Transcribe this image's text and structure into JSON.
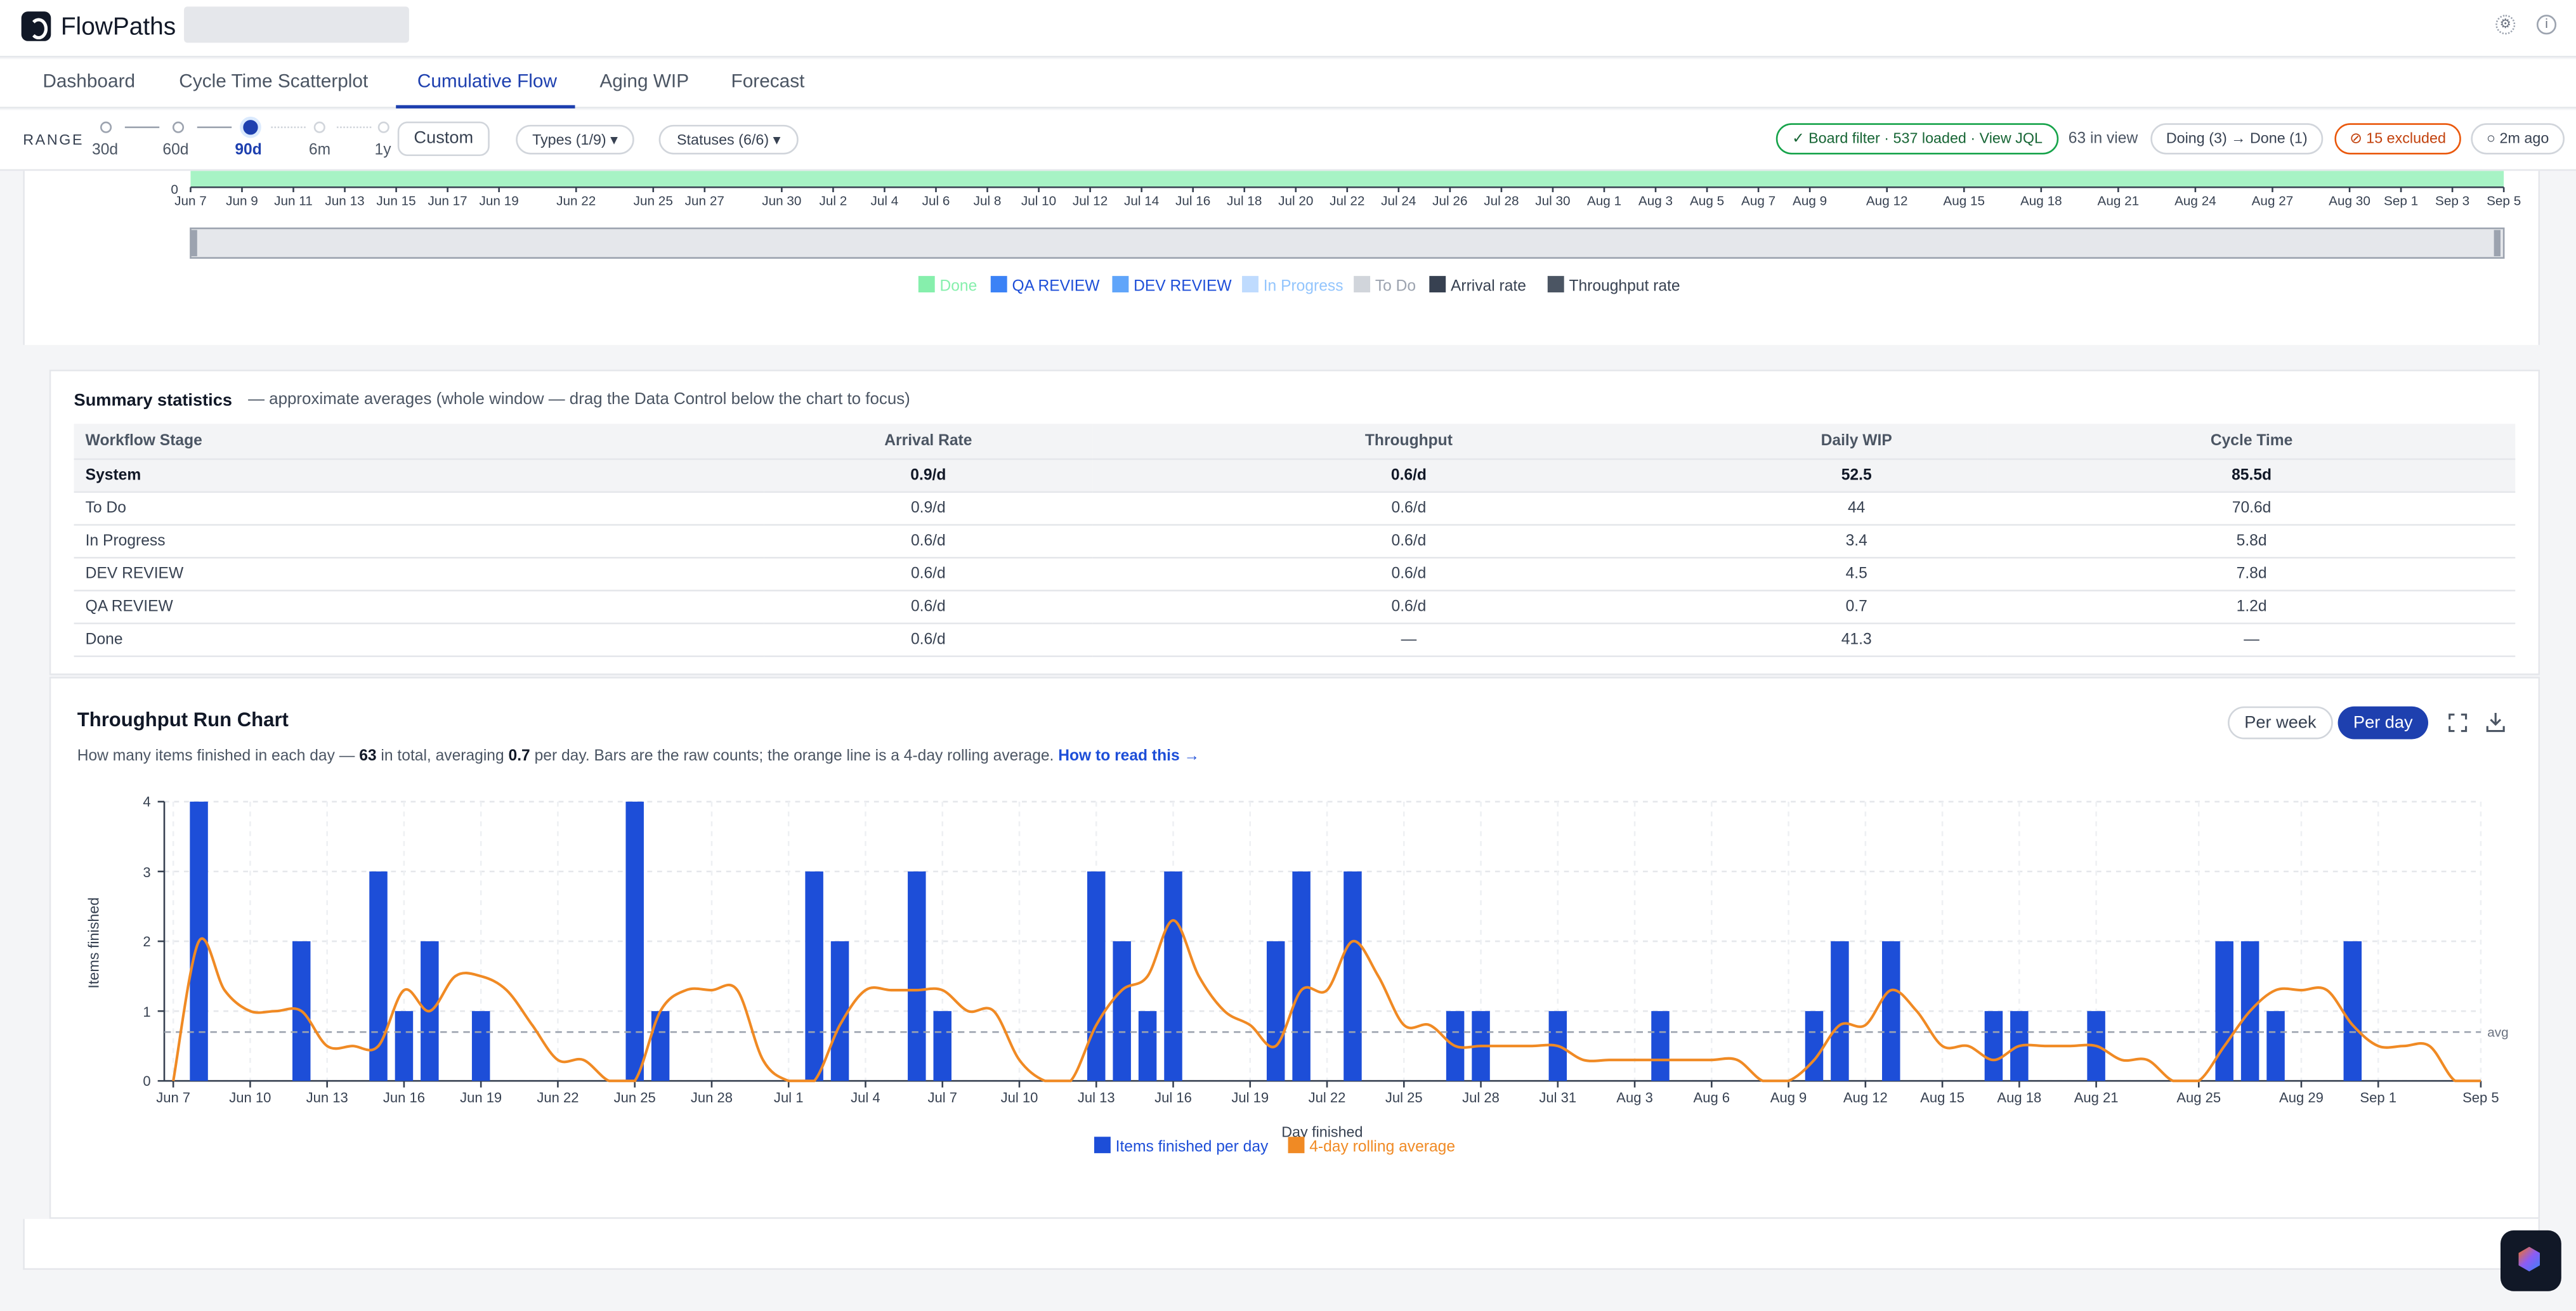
{
  "app": {
    "name": "FlowPaths",
    "settings_icon": "gear-icon",
    "info_icon": "info-icon"
  },
  "tabs": [
    {
      "label": "Dashboard"
    },
    {
      "label": "Cycle Time Scatterplot"
    },
    {
      "label": "Cumulative Flow",
      "active": true
    },
    {
      "label": "Aging WIP"
    },
    {
      "label": "Forecast"
    }
  ],
  "range": {
    "label": "RANGE",
    "options": [
      "30d",
      "60d",
      "90d",
      "6m",
      "1y"
    ],
    "selected": "90d",
    "custom_label": "Custom"
  },
  "filters": {
    "types": "Types (1/9) ▾",
    "statuses": "Statuses (6/6) ▾"
  },
  "status": {
    "board_filter": "✓ Board filter · 537 loaded · View JQL",
    "in_view": "63 in view",
    "transition": "Doing (3) → Done (1)",
    "excluded": "⊘ 15 excluded",
    "updated": "○ 2m ago"
  },
  "cfd": {
    "y_zero": "0",
    "x_ticks": [
      "Jun 7",
      "Jun 9",
      "Jun 11",
      "Jun 13",
      "Jun 15",
      "Jun 17",
      "Jun 19",
      "Jun 22",
      "Jun 25",
      "Jun 27",
      "Jun 30",
      "Jul 2",
      "Jul 4",
      "Jul 6",
      "Jul 8",
      "Jul 10",
      "Jul 12",
      "Jul 14",
      "Jul 16",
      "Jul 18",
      "Jul 20",
      "Jul 22",
      "Jul 24",
      "Jul 26",
      "Jul 28",
      "Jul 30",
      "Aug 1",
      "Aug 3",
      "Aug 5",
      "Aug 7",
      "Aug 9",
      "Aug 12",
      "Aug 15",
      "Aug 18",
      "Aug 21",
      "Aug 24",
      "Aug 27",
      "Aug 30",
      "Sep 1",
      "Sep 3",
      "Sep 5"
    ],
    "legend": [
      {
        "name": "Done",
        "color": "#86efac",
        "dimmed": true
      },
      {
        "name": "QA REVIEW",
        "color": "#3b82f6",
        "dimmed": false
      },
      {
        "name": "DEV REVIEW",
        "color": "#60a5fa",
        "dimmed": false
      },
      {
        "name": "In Progress",
        "color": "#bfdbfe",
        "dimmed": true
      },
      {
        "name": "To Do",
        "color": "#d1d5db",
        "dimmed": true
      },
      {
        "name": "Arrival rate",
        "color": "#374151",
        "dimmed": false
      },
      {
        "name": "Throughput rate",
        "color": "#4b5563",
        "dimmed": false
      }
    ]
  },
  "summary": {
    "title": "Summary statistics",
    "subtitle": "— approximate averages (whole window — drag the Data Control below the chart to focus)",
    "columns": [
      "Workflow Stage",
      "Arrival Rate",
      "Throughput",
      "Daily WIP",
      "Cycle Time"
    ],
    "rows": [
      [
        "System",
        "0.9/d",
        "0.6/d",
        "52.5",
        "85.5d"
      ],
      [
        "To Do",
        "0.9/d",
        "0.6/d",
        "44",
        "70.6d"
      ],
      [
        "In Progress",
        "0.6/d",
        "0.6/d",
        "3.4",
        "5.8d"
      ],
      [
        "DEV REVIEW",
        "0.6/d",
        "0.6/d",
        "4.5",
        "7.8d"
      ],
      [
        "QA REVIEW",
        "0.6/d",
        "0.6/d",
        "0.7",
        "1.2d"
      ],
      [
        "Done",
        "0.6/d",
        "—",
        "41.3",
        "—"
      ]
    ]
  },
  "throughput": {
    "title": "Throughput Run Chart",
    "desc_pre": "How many items finished in each day — ",
    "total": "63",
    "desc_mid": " in total, averaging ",
    "avg": "0.7",
    "desc_post": " per day. Bars are the raw counts; the orange line is a 4-day rolling average.",
    "help_link": "How to read this →",
    "per_week": "Per week",
    "per_day": "Per day",
    "expand_icon": "expand-icon",
    "download_icon": "download-icon"
  },
  "chart_data": {
    "type": "bar",
    "title": "Throughput Run Chart",
    "xlabel": "Day finished",
    "ylabel": "Items finished",
    "ylim": [
      0,
      4
    ],
    "y_ticks": [
      "0",
      "1",
      "2",
      "3",
      "4"
    ],
    "x_tick_labels": [
      "Jun 7",
      "Jun 10",
      "Jun 13",
      "Jun 16",
      "Jun 19",
      "Jun 22",
      "Jun 25",
      "Jun 28",
      "Jul 1",
      "Jul 4",
      "Jul 7",
      "Jul 10",
      "Jul 13",
      "Jul 16",
      "Jul 19",
      "Jul 22",
      "Jul 25",
      "Jul 28",
      "Jul 31",
      "Aug 3",
      "Aug 6",
      "Aug 9",
      "Aug 12",
      "Aug 15",
      "Aug 18",
      "Aug 21",
      "Aug 25",
      "Aug 29",
      "Sep 1",
      "Sep 5"
    ],
    "x_start": "2024-06-07",
    "x_end": "2024-09-05",
    "bars": [
      {
        "x": "2024-06-08",
        "y": 4
      },
      {
        "x": "2024-06-12",
        "y": 2
      },
      {
        "x": "2024-06-15",
        "y": 3
      },
      {
        "x": "2024-06-16",
        "y": 1
      },
      {
        "x": "2024-06-17",
        "y": 2
      },
      {
        "x": "2024-06-19",
        "y": 1
      },
      {
        "x": "2024-06-25",
        "y": 4
      },
      {
        "x": "2024-06-26",
        "y": 1
      },
      {
        "x": "2024-07-02",
        "y": 3
      },
      {
        "x": "2024-07-03",
        "y": 2
      },
      {
        "x": "2024-07-06",
        "y": 3
      },
      {
        "x": "2024-07-07",
        "y": 1
      },
      {
        "x": "2024-07-13",
        "y": 3
      },
      {
        "x": "2024-07-14",
        "y": 2
      },
      {
        "x": "2024-07-15",
        "y": 1
      },
      {
        "x": "2024-07-16",
        "y": 3
      },
      {
        "x": "2024-07-20",
        "y": 2
      },
      {
        "x": "2024-07-21",
        "y": 3
      },
      {
        "x": "2024-07-23",
        "y": 3
      },
      {
        "x": "2024-07-27",
        "y": 1
      },
      {
        "x": "2024-07-28",
        "y": 1
      },
      {
        "x": "2024-07-31",
        "y": 1
      },
      {
        "x": "2024-08-04",
        "y": 1
      },
      {
        "x": "2024-08-10",
        "y": 1
      },
      {
        "x": "2024-08-11",
        "y": 2
      },
      {
        "x": "2024-08-13",
        "y": 2
      },
      {
        "x": "2024-08-17",
        "y": 1
      },
      {
        "x": "2024-08-18",
        "y": 1
      },
      {
        "x": "2024-08-21",
        "y": 1
      },
      {
        "x": "2024-08-26",
        "y": 2
      },
      {
        "x": "2024-08-27",
        "y": 2
      },
      {
        "x": "2024-08-28",
        "y": 1
      },
      {
        "x": "2024-08-31",
        "y": 2
      }
    ],
    "rolling_average": [
      {
        "x": "2024-06-07",
        "y": 0
      },
      {
        "x": "2024-06-08",
        "y": 2
      },
      {
        "x": "2024-06-09",
        "y": 1.3
      },
      {
        "x": "2024-06-10",
        "y": 1
      },
      {
        "x": "2024-06-11",
        "y": 1
      },
      {
        "x": "2024-06-12",
        "y": 1
      },
      {
        "x": "2024-06-13",
        "y": 0.5
      },
      {
        "x": "2024-06-14",
        "y": 0.5
      },
      {
        "x": "2024-06-15",
        "y": 0.5
      },
      {
        "x": "2024-06-16",
        "y": 1.3
      },
      {
        "x": "2024-06-17",
        "y": 1
      },
      {
        "x": "2024-06-18",
        "y": 1.5
      },
      {
        "x": "2024-06-19",
        "y": 1.5
      },
      {
        "x": "2024-06-20",
        "y": 1.3
      },
      {
        "x": "2024-06-21",
        "y": 0.8
      },
      {
        "x": "2024-06-22",
        "y": 0.3
      },
      {
        "x": "2024-06-23",
        "y": 0.3
      },
      {
        "x": "2024-06-24",
        "y": 0
      },
      {
        "x": "2024-06-25",
        "y": 0
      },
      {
        "x": "2024-06-26",
        "y": 1
      },
      {
        "x": "2024-06-27",
        "y": 1.3
      },
      {
        "x": "2024-06-28",
        "y": 1.3
      },
      {
        "x": "2024-06-29",
        "y": 1.3
      },
      {
        "x": "2024-06-30",
        "y": 0.3
      },
      {
        "x": "2024-07-01",
        "y": 0
      },
      {
        "x": "2024-07-02",
        "y": 0
      },
      {
        "x": "2024-07-03",
        "y": 0.8
      },
      {
        "x": "2024-07-04",
        "y": 1.3
      },
      {
        "x": "2024-07-05",
        "y": 1.3
      },
      {
        "x": "2024-07-06",
        "y": 1.3
      },
      {
        "x": "2024-07-07",
        "y": 1.3
      },
      {
        "x": "2024-07-08",
        "y": 1
      },
      {
        "x": "2024-07-09",
        "y": 1
      },
      {
        "x": "2024-07-10",
        "y": 0.3
      },
      {
        "x": "2024-07-11",
        "y": 0
      },
      {
        "x": "2024-07-12",
        "y": 0
      },
      {
        "x": "2024-07-13",
        "y": 0.8
      },
      {
        "x": "2024-07-14",
        "y": 1.3
      },
      {
        "x": "2024-07-15",
        "y": 1.5
      },
      {
        "x": "2024-07-16",
        "y": 2.3
      },
      {
        "x": "2024-07-17",
        "y": 1.5
      },
      {
        "x": "2024-07-18",
        "y": 1
      },
      {
        "x": "2024-07-19",
        "y": 0.8
      },
      {
        "x": "2024-07-20",
        "y": 0.5
      },
      {
        "x": "2024-07-21",
        "y": 1.3
      },
      {
        "x": "2024-07-22",
        "y": 1.3
      },
      {
        "x": "2024-07-23",
        "y": 2
      },
      {
        "x": "2024-07-24",
        "y": 1.5
      },
      {
        "x": "2024-07-25",
        "y": 0.8
      },
      {
        "x": "2024-07-26",
        "y": 0.8
      },
      {
        "x": "2024-07-27",
        "y": 0.5
      },
      {
        "x": "2024-07-28",
        "y": 0.5
      },
      {
        "x": "2024-07-29",
        "y": 0.5
      },
      {
        "x": "2024-07-30",
        "y": 0.5
      },
      {
        "x": "2024-07-31",
        "y": 0.5
      },
      {
        "x": "2024-08-01",
        "y": 0.3
      },
      {
        "x": "2024-08-02",
        "y": 0.3
      },
      {
        "x": "2024-08-03",
        "y": 0.3
      },
      {
        "x": "2024-08-04",
        "y": 0.3
      },
      {
        "x": "2024-08-05",
        "y": 0.3
      },
      {
        "x": "2024-08-06",
        "y": 0.3
      },
      {
        "x": "2024-08-07",
        "y": 0.3
      },
      {
        "x": "2024-08-08",
        "y": 0
      },
      {
        "x": "2024-08-09",
        "y": 0
      },
      {
        "x": "2024-08-10",
        "y": 0.3
      },
      {
        "x": "2024-08-11",
        "y": 0.8
      },
      {
        "x": "2024-08-12",
        "y": 0.8
      },
      {
        "x": "2024-08-13",
        "y": 1.3
      },
      {
        "x": "2024-08-14",
        "y": 1
      },
      {
        "x": "2024-08-15",
        "y": 0.5
      },
      {
        "x": "2024-08-16",
        "y": 0.5
      },
      {
        "x": "2024-08-17",
        "y": 0.3
      },
      {
        "x": "2024-08-18",
        "y": 0.5
      },
      {
        "x": "2024-08-19",
        "y": 0.5
      },
      {
        "x": "2024-08-20",
        "y": 0.5
      },
      {
        "x": "2024-08-21",
        "y": 0.5
      },
      {
        "x": "2024-08-22",
        "y": 0.3
      },
      {
        "x": "2024-08-23",
        "y": 0.3
      },
      {
        "x": "2024-08-24",
        "y": 0
      },
      {
        "x": "2024-08-25",
        "y": 0
      },
      {
        "x": "2024-08-26",
        "y": 0.5
      },
      {
        "x": "2024-08-27",
        "y": 1
      },
      {
        "x": "2024-08-28",
        "y": 1.3
      },
      {
        "x": "2024-08-29",
        "y": 1.3
      },
      {
        "x": "2024-08-30",
        "y": 1.3
      },
      {
        "x": "2024-08-31",
        "y": 0.8
      },
      {
        "x": "2024-09-01",
        "y": 0.5
      },
      {
        "x": "2024-09-02",
        "y": 0.5
      },
      {
        "x": "2024-09-03",
        "y": 0.5
      },
      {
        "x": "2024-09-04",
        "y": 0
      },
      {
        "x": "2024-09-05",
        "y": 0
      }
    ],
    "average": 0.7,
    "avg_label": "avg",
    "series": [
      {
        "name": "Items finished per day",
        "color": "#1d4ed8"
      },
      {
        "name": "4-day rolling average",
        "color": "#f08a24"
      }
    ],
    "grid": true,
    "legend_position": "bottom"
  }
}
